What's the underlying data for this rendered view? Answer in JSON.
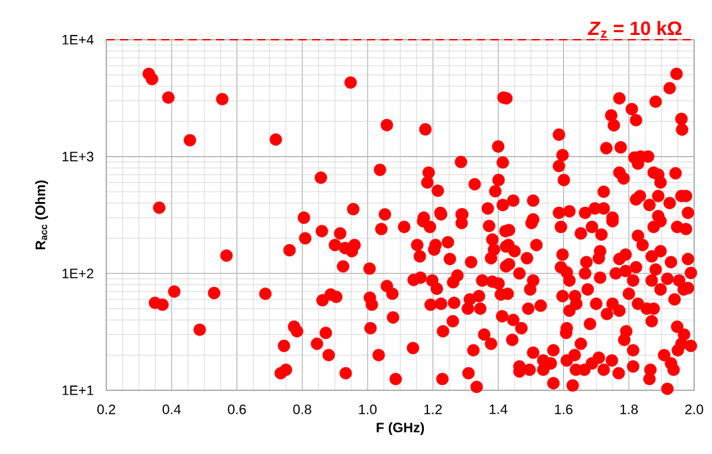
{
  "chart_data": {
    "type": "scatter",
    "xlabel": "F (GHz)",
    "ylabel": "R$_{acc}$ (Ohm)",
    "log": "y",
    "grid": true,
    "marker": "circle",
    "xlim": [
      0.2,
      2.0
    ],
    "ylim": [
      10,
      10000
    ],
    "xticks": [
      {
        "value": 0.2,
        "label": "0.2"
      },
      {
        "value": 0.4,
        "label": "0.4"
      },
      {
        "value": 0.6,
        "label": "0.6"
      },
      {
        "value": 0.8,
        "label": "0.8"
      },
      {
        "value": 1.0,
        "label": "1.0"
      },
      {
        "value": 1.2,
        "label": "1.2"
      },
      {
        "value": 1.4,
        "label": "1.4"
      },
      {
        "value": 1.6,
        "label": "1.6"
      },
      {
        "value": 1.8,
        "label": "1.8"
      },
      {
        "value": 2.0,
        "label": "2.0"
      }
    ],
    "yticks": [
      {
        "value": 10,
        "label": "1E+1"
      },
      {
        "value": 100,
        "label": "1E+2"
      },
      {
        "value": 1000,
        "label": "1E+3"
      },
      {
        "value": 10000,
        "label": "1E+4"
      }
    ],
    "ref_lines": [
      {
        "axis": "y",
        "value": 10000,
        "label": "*Z*$_{z}$ = 10 kΩ",
        "color": "#ff0000",
        "line_style": "dashed"
      }
    ],
    "series": [
      {
        "color": "#ff0000",
        "x": [
          0.33,
          0.34,
          0.39,
          0.555,
          0.456,
          0.719,
          0.362,
          0.805,
          0.948,
          1.059,
          1.177,
          1.416,
          1.425,
          1.4,
          0.857,
          1.038,
          1.187,
          1.183,
          1.215,
          1.286,
          1.328,
          1.401,
          1.391,
          1.414,
          1.414,
          0.956,
          1.053,
          1.172,
          1.223,
          1.29,
          1.368,
          1.586,
          1.597,
          1.586,
          1.601,
          1.771,
          1.746,
          1.754,
          1.809,
          1.822,
          1.882,
          1.925,
          1.946,
          1.961,
          1.963,
          1.731,
          1.775,
          1.817,
          1.836,
          1.859,
          1.828,
          1.771,
          1.784,
          1.876,
          1.89,
          1.897,
          1.943,
          1.446,
          1.507,
          1.723,
          1.586,
          1.618,
          1.666,
          1.696,
          1.723,
          1.75,
          1.822,
          1.834,
          1.863,
          1.89,
          1.925,
          1.961,
          1.975,
          1.981,
          1.89,
          1.507,
          0.809,
          0.761,
          0.568,
          0.408,
          0.349,
          0.372,
          0.53,
          0.687,
          0.486,
          0.775,
          0.784,
          0.744,
          0.734,
          0.75,
          0.86,
          0.916,
          0.9,
          0.931,
          0.96,
          0.952,
          0.925,
          1.006,
          1.042,
          1.112,
          1.17,
          1.191,
          1.225,
          1.288,
          1.288,
          1.372,
          1.152,
          1.16,
          1.208,
          1.204,
          1.246,
          1.252,
          1.317,
          1.382,
          1.387,
          1.378,
          1.422,
          1.424,
          1.424,
          0.862,
          0.887,
          0.904,
          1.007,
          1.013,
          1.059,
          1.076,
          1.078,
          1.009,
          0.872,
          0.845,
          0.881,
          1.034,
          1.139,
          0.933,
          1.086,
          1.229,
          1.309,
          1.334,
          1.324,
          1.357,
          1.378,
          1.231,
          1.261,
          1.141,
          1.162,
          1.198,
          1.212,
          1.262,
          1.275,
          1.193,
          1.225,
          1.265,
          1.313,
          1.307,
          1.341,
          1.345,
          1.351,
          1.382,
          1.401,
          1.408,
          1.412,
          1.433,
          1.502,
          1.517,
          1.431,
          1.45,
          1.488,
          1.433,
          1.465,
          1.507,
          1.429,
          1.498,
          1.492,
          1.53,
          1.446,
          1.471,
          1.443,
          1.507,
          1.465,
          1.465,
          1.496,
          1.592,
          1.597,
          1.592,
          1.61,
          1.618,
          1.597,
          1.635,
          1.618,
          1.639,
          1.61,
          1.608,
          1.569,
          1.653,
          1.634,
          1.538,
          1.561,
          1.538,
          1.569,
          1.61,
          1.638,
          1.628,
          1.664,
          1.687,
          1.708,
          1.723,
          1.748,
          1.769,
          1.813,
          1.866,
          1.863,
          1.918,
          1.908,
          1.929,
          1.95,
          1.961,
          1.99,
          1.948,
          1.969,
          1.937,
          1.653,
          1.687,
          1.716,
          1.712,
          1.708,
          1.75,
          1.67,
          1.666,
          1.712,
          1.674,
          1.7,
          1.733,
          1.75,
          1.771,
          1.681,
          1.771,
          1.79,
          1.76,
          1.79,
          1.822,
          1.813,
          1.8,
          1.828,
          1.855,
          1.87,
          1.792,
          1.786,
          1.813,
          1.828,
          1.842,
          1.876,
          1.897,
          1.948,
          1.975,
          1.87,
          1.897,
          1.929,
          1.981,
          1.99,
          1.882,
          1.87,
          1.918,
          1.954,
          1.94,
          1.981,
          1.897,
          1.876,
          1.968
        ],
        "values": [
          5100,
          4600,
          3200,
          3100,
          1380,
          1400,
          365,
          300,
          4300,
          1860,
          1710,
          3200,
          3150,
          1220,
          660,
          770,
          730,
          600,
          510,
          900,
          580,
          630,
          505,
          890,
          385,
          355,
          320,
          300,
          330,
          320,
          360,
          1540,
          1030,
          830,
          630,
          3150,
          2250,
          1850,
          2550,
          2050,
          2950,
          3850,
          5100,
          2100,
          1700,
          1180,
          1200,
          980,
          1000,
          1000,
          870,
          730,
          650,
          730,
          700,
          600,
          720,
          420,
          420,
          500,
          330,
          340,
          330,
          360,
          360,
          300,
          430,
          460,
          385,
          460,
          400,
          460,
          460,
          330,
          310,
          290,
          200,
          158,
          142,
          70,
          56,
          54,
          68,
          67,
          33,
          35,
          32,
          24,
          14,
          15,
          230,
          220,
          175,
          165,
          175,
          155,
          115,
          110,
          240,
          250,
          280,
          250,
          320,
          320,
          270,
          255,
          175,
          140,
          175,
          160,
          185,
          133,
          125,
          195,
          160,
          135,
          230,
          170,
          115,
          59,
          66,
          63,
          62,
          54,
          78,
          67,
          42,
          34,
          31,
          25,
          20,
          20,
          23,
          14,
          12.5,
          12.5,
          14,
          10.7,
          22,
          30,
          25,
          32,
          39,
          88,
          92,
          87,
          74,
          84,
          96,
          54,
          55,
          56,
          60,
          50,
          64,
          50,
          87,
          85,
          82,
          66,
          43,
          235,
          270,
          175,
          175,
          155,
          135,
          120,
          100,
          87,
          67,
          73,
          50,
          53,
          40,
          34,
          27,
          21,
          16,
          14.5,
          15,
          250,
          145,
          113,
          102,
          87,
          64,
          64,
          48,
          55,
          34,
          31,
          22,
          25,
          20,
          18,
          17,
          15,
          11.5,
          18,
          15,
          11,
          15,
          17,
          19,
          15,
          18,
          14,
          16,
          15,
          12.5,
          10.3,
          20,
          17,
          22,
          25,
          24,
          35,
          30,
          15,
          220,
          250,
          215,
          155,
          135,
          280,
          125,
          100,
          92,
          73,
          55,
          45,
          55,
          48,
          37,
          133,
          145,
          100,
          105,
          113,
          87,
          67,
          55,
          50,
          39,
          32,
          27,
          22,
          210,
          175,
          250,
          280,
          250,
          240,
          140,
          155,
          125,
          133,
          101,
          108,
          87,
          90,
          87,
          60,
          75,
          73,
          50,
          73
        ]
      }
    ]
  }
}
